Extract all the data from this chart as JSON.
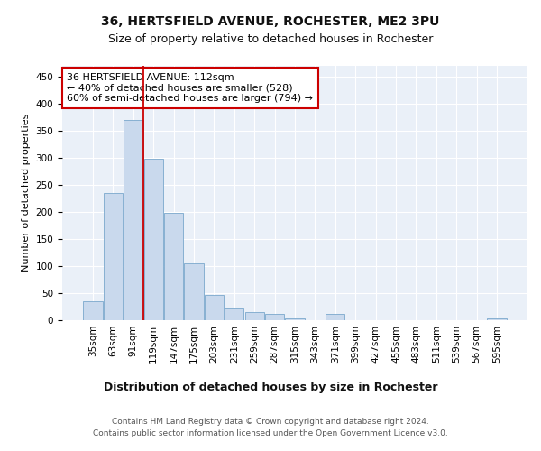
{
  "title": "36, HERTSFIELD AVENUE, ROCHESTER, ME2 3PU",
  "subtitle": "Size of property relative to detached houses in Rochester",
  "xlabel_bottom": "Distribution of detached houses by size in Rochester",
  "ylabel": "Number of detached properties",
  "categories": [
    "35sqm",
    "63sqm",
    "91sqm",
    "119sqm",
    "147sqm",
    "175sqm",
    "203sqm",
    "231sqm",
    "259sqm",
    "287sqm",
    "315sqm",
    "343sqm",
    "371sqm",
    "399sqm",
    "427sqm",
    "455sqm",
    "483sqm",
    "511sqm",
    "539sqm",
    "567sqm",
    "595sqm"
  ],
  "values": [
    35,
    234,
    370,
    298,
    198,
    104,
    46,
    22,
    15,
    11,
    4,
    0,
    11,
    0,
    0,
    0,
    0,
    0,
    0,
    0,
    4
  ],
  "bar_color": "#c9d9ed",
  "bar_edge_color": "#7aa8cc",
  "vline_color": "#cc0000",
  "vline_x": 2.5,
  "annotation_text": "36 HERTSFIELD AVENUE: 112sqm\n← 40% of detached houses are smaller (528)\n60% of semi-detached houses are larger (794) →",
  "annotation_box_edge_color": "#cc0000",
  "ylim": [
    0,
    470
  ],
  "yticks": [
    0,
    50,
    100,
    150,
    200,
    250,
    300,
    350,
    400,
    450
  ],
  "background_color": "#eaf0f8",
  "grid_color": "#ffffff",
  "footer_line1": "Contains HM Land Registry data © Crown copyright and database right 2024.",
  "footer_line2": "Contains public sector information licensed under the Open Government Licence v3.0.",
  "title_fontsize": 10,
  "subtitle_fontsize": 9,
  "annotation_fontsize": 8,
  "tick_fontsize": 7.5,
  "ylabel_fontsize": 8,
  "xlabel_bottom_fontsize": 9,
  "footer_fontsize": 6.5
}
